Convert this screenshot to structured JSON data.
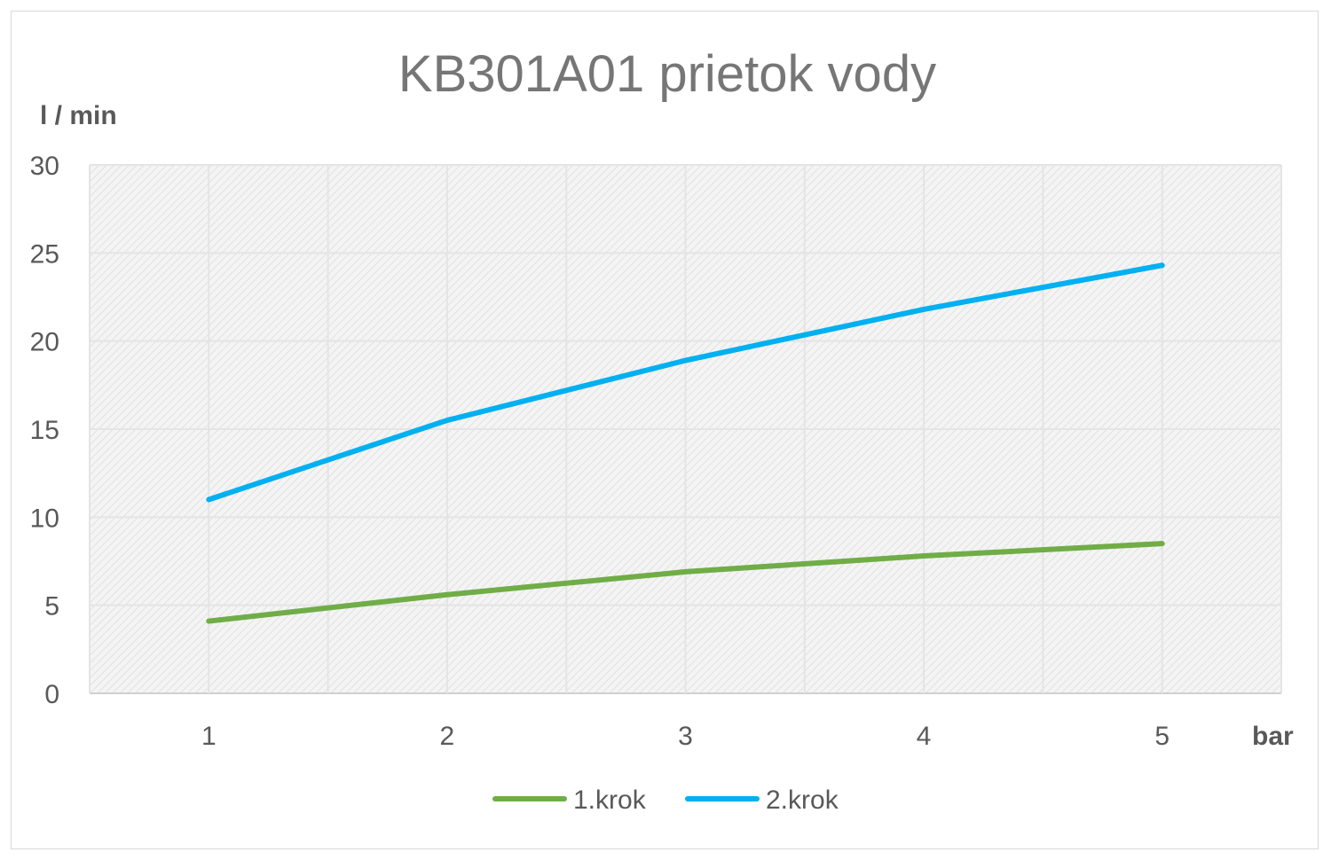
{
  "chart_data": {
    "type": "line",
    "title": "KB301A01 prietok vody",
    "ylabel": "l / min",
    "xlabel": "bar",
    "x": [
      1,
      2,
      3,
      4,
      5
    ],
    "ylim": [
      0,
      30
    ],
    "yticks": [
      0,
      5,
      10,
      15,
      20,
      25,
      30
    ],
    "grid": true,
    "legend": "bottom",
    "series": [
      {
        "name": "1.krok",
        "color": "#70ad47",
        "values": [
          4.1,
          5.6,
          6.9,
          7.8,
          8.5
        ]
      },
      {
        "name": "2.krok",
        "color": "#00b0f0",
        "values": [
          11.0,
          15.5,
          18.9,
          21.8,
          24.3
        ]
      }
    ]
  }
}
